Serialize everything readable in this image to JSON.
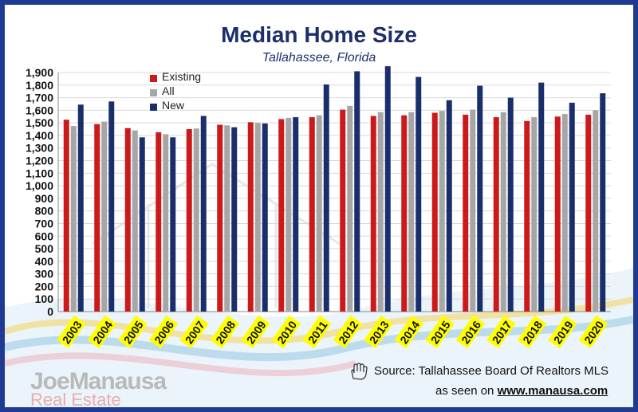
{
  "title": "Median Home Size",
  "subtitle": "Tallahassee, Florida",
  "source_label": "Source: Tallahassee Board Of Realtors MLS",
  "seen_on_label": "as seen on",
  "seen_on_link": "www.manausa.com",
  "logo_line1": "JoeManausa",
  "logo_line2": "Real Estate",
  "hand_icon": "hand-icon",
  "colors": {
    "frame": "#1f3a93",
    "existing": "#cc1a1a",
    "all": "#a6a6a6",
    "new": "#1a2e6b",
    "year_tag": "#ffff00"
  },
  "chart_data": {
    "type": "bar",
    "title": "Median Home Size",
    "subtitle": "Tallahassee, Florida",
    "categories": [
      "2003",
      "2004",
      "2005",
      "2006",
      "2007",
      "2008",
      "2009",
      "2010",
      "2011",
      "2012",
      "2013",
      "2014",
      "2015",
      "2016",
      "2017",
      "2018",
      "2019",
      "2020"
    ],
    "series": [
      {
        "name": "Existing",
        "color": "#cc1a1a",
        "values": [
          1525,
          1490,
          1458,
          1425,
          1450,
          1485,
          1505,
          1530,
          1545,
          1605,
          1555,
          1560,
          1580,
          1565,
          1545,
          1515,
          1550,
          1565
        ]
      },
      {
        "name": "All",
        "color": "#a6a6a6",
        "values": [
          1475,
          1510,
          1440,
          1410,
          1455,
          1480,
          1500,
          1540,
          1560,
          1635,
          1585,
          1585,
          1595,
          1605,
          1585,
          1545,
          1570,
          1600
        ]
      },
      {
        "name": "New",
        "color": "#1a2e6b",
        "values": [
          1645,
          1670,
          1385,
          1385,
          1555,
          1465,
          1495,
          1545,
          1805,
          1910,
          1950,
          1865,
          1680,
          1795,
          1700,
          1820,
          1660,
          1735
        ]
      }
    ],
    "ylim": [
      0,
      1900
    ],
    "yticks": [
      "0",
      "100",
      "200",
      "300",
      "400",
      "500",
      "600",
      "700",
      "800",
      "900",
      "1,000",
      "1,100",
      "1,200",
      "1,300",
      "1,400",
      "1,500",
      "1,600",
      "1,700",
      "1,800",
      "1,900"
    ],
    "grid": true,
    "legend_position": "top-left"
  }
}
